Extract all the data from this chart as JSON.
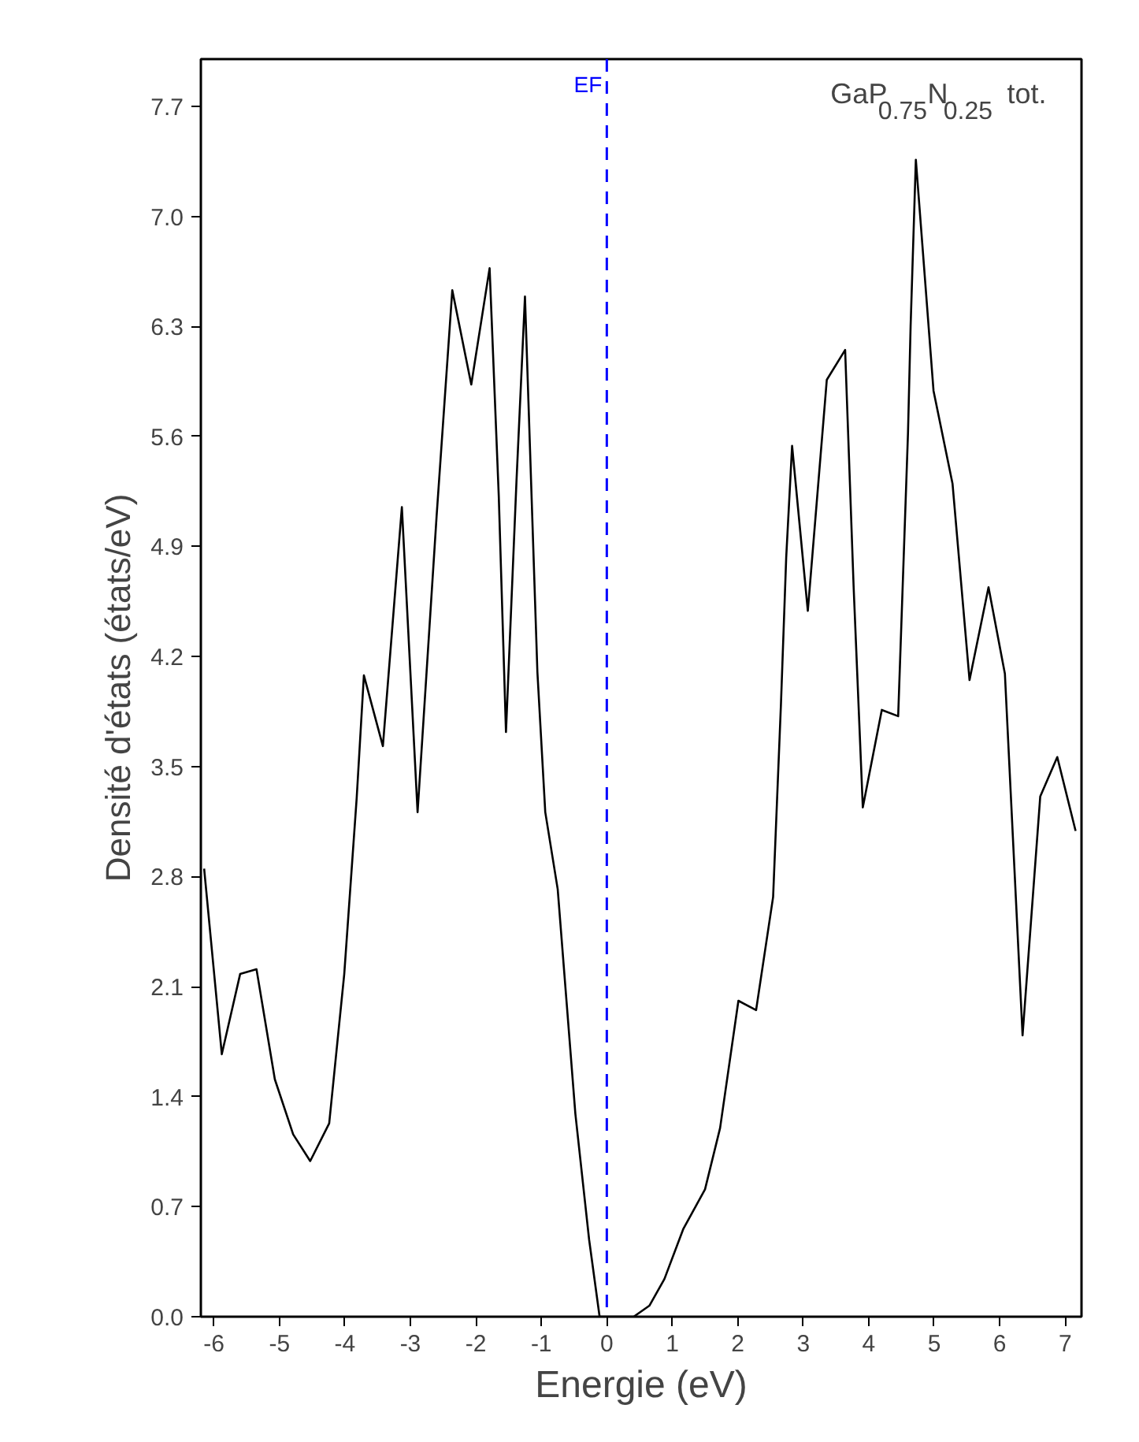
{
  "chart_data": {
    "type": "line",
    "xlabel": "Energie (eV)",
    "ylabel": "Densité d'états (états/eV)",
    "annotations": [
      "GaP$_{0.75}$N$_{0.25}$ tot."
    ],
    "x": [
      -6.15,
      -5.88,
      -5.6,
      -5.35,
      -5.07,
      -4.79,
      -4.53,
      -4.24,
      -4.01,
      -3.82,
      -3.71,
      -3.42,
      -3.13,
      -2.89,
      -2.6,
      -2.36,
      -2.07,
      -1.79,
      -1.65,
      -1.54,
      -1.38,
      -1.25,
      -1.06,
      -0.94,
      -0.75,
      -0.48,
      -0.27,
      -0.11,
      0.0,
      0.41,
      0.65,
      0.88,
      1.17,
      1.5,
      1.73,
      2.01,
      2.28,
      2.54,
      2.66,
      2.74,
      2.83,
      3.07,
      3.36,
      3.64,
      3.77,
      3.91,
      4.2,
      4.45,
      4.6,
      4.64,
      4.72,
      4.99,
      5.28,
      5.54,
      5.83,
      6.08,
      6.35,
      6.62,
      6.88,
      7.16
    ],
    "series": [
      {
        "color": "#000000",
        "values": [
          2.85,
          1.67,
          2.18,
          2.21,
          1.51,
          1.16,
          0.99,
          1.23,
          2.18,
          3.3,
          4.08,
          3.63,
          5.15,
          3.21,
          5.09,
          6.53,
          5.93,
          6.67,
          5.22,
          3.72,
          5.31,
          6.49,
          4.1,
          3.21,
          2.72,
          1.29,
          0.49,
          0.0,
          0.0,
          0.0,
          0.07,
          0.24,
          0.56,
          0.81,
          1.2,
          2.01,
          1.95,
          2.67,
          3.9,
          4.83,
          5.54,
          4.49,
          5.96,
          6.15,
          4.64,
          3.24,
          3.86,
          3.82,
          5.62,
          6.3,
          7.36,
          5.89,
          5.3,
          4.05,
          4.64,
          4.09,
          1.79,
          3.31,
          3.56,
          3.09
        ]
      }
    ],
    "xlim": [
      -6.2,
      7.25
    ],
    "ylim": [
      0,
      8.0
    ],
    "xticks": [
      -6,
      -5,
      -4,
      -3,
      -2,
      -1,
      0,
      1,
      2,
      3,
      4,
      5,
      6,
      7
    ],
    "yticks": [
      {
        "value": 0,
        "label": "0.0"
      },
      {
        "value": 0.7,
        "label": "0.7"
      },
      {
        "value": 1.4,
        "label": "1.4"
      },
      {
        "value": 2.1,
        "label": "2.1"
      },
      {
        "value": 2.8,
        "label": "2.8"
      },
      {
        "value": 3.5,
        "label": "3.5"
      },
      {
        "value": 4.2,
        "label": "4.2"
      },
      {
        "value": 4.9,
        "label": "4.9"
      },
      {
        "value": 5.6,
        "label": "5.6"
      },
      {
        "value": 6.3,
        "label": "6.3"
      },
      {
        "value": 7.0,
        "label": "7.0"
      },
      {
        "value": 7.7,
        "label": "7.7"
      }
    ],
    "ref_lines": [
      {
        "axis": "x",
        "value": 0,
        "label": "EF",
        "color": "#0000ff",
        "line_style": "dashed"
      }
    ],
    "grid": false,
    "marker": "none",
    "line_style": "solid"
  }
}
